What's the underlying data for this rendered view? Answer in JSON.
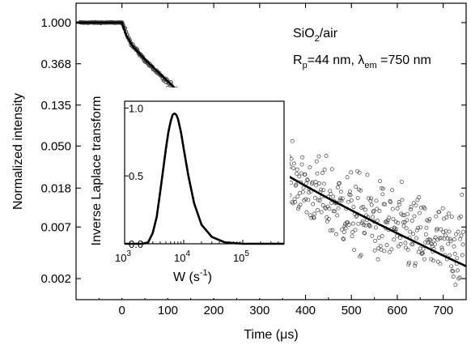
{
  "chart_data": [
    {
      "type": "scatter",
      "title": "",
      "xlabel": "Time (μs)",
      "ylabel": "Normalized intensity",
      "xlim": [
        -100,
        750
      ],
      "ylim": [
        0.0012,
        1.6
      ],
      "y_scale": "log",
      "x_ticks": [
        0,
        100,
        200,
        300,
        400,
        500,
        600,
        700
      ],
      "y_ticks": [
        1.0,
        0.368,
        0.135,
        0.05,
        0.018,
        0.007,
        0.002
      ],
      "y_tick_labels": [
        "1.000",
        "0.368",
        "0.135",
        "0.050",
        "0.018",
        "0.007",
        "0.002"
      ],
      "annotation": {
        "line1_main": "SiO",
        "line1_sub": "2",
        "line1_rest": "/air",
        "line2_r": "R",
        "line2_r_sub": "p",
        "line2_mid": "=44 nm, ",
        "line2_lambda": "λ",
        "line2_lambda_sub": "em",
        "line2_end": " =750 nm"
      },
      "series": [
        {
          "kind": "points",
          "marker": "open-circle",
          "approx_points": [
            [
              -90,
              1.0
            ],
            [
              -60,
              1.0
            ],
            [
              -30,
              1.0
            ],
            [
              0,
              1.0
            ],
            [
              20,
              0.6
            ],
            [
              50,
              0.4
            ],
            [
              100,
              0.23
            ],
            [
              150,
              0.135
            ],
            [
              200,
              0.085
            ],
            [
              250,
              0.055
            ],
            [
              300,
              0.035
            ],
            [
              350,
              0.025
            ],
            [
              400,
              0.018
            ],
            [
              500,
              0.01
            ],
            [
              600,
              0.0065
            ],
            [
              700,
              0.0045
            ]
          ]
        },
        {
          "kind": "fit-line",
          "points": [
            [
              -100,
              1.0
            ],
            [
              0,
              1.0
            ],
            [
              10,
              0.72
            ],
            [
              25,
              0.55
            ],
            [
              50,
              0.41
            ],
            [
              100,
              0.24
            ],
            [
              150,
              0.14
            ],
            [
              200,
              0.085
            ],
            [
              250,
              0.055
            ],
            [
              300,
              0.037
            ],
            [
              350,
              0.026
            ],
            [
              400,
              0.019
            ],
            [
              450,
              0.014
            ],
            [
              500,
              0.0105
            ],
            [
              550,
              0.0079
            ],
            [
              600,
              0.006
            ],
            [
              650,
              0.0046
            ],
            [
              700,
              0.0035
            ],
            [
              750,
              0.0027
            ]
          ]
        }
      ]
    },
    {
      "type": "line",
      "title": "",
      "xlabel_main": "W (s",
      "xlabel_sup": "-1",
      "xlabel_end": ")",
      "ylabel": "Inverse Laplace transform",
      "x_scale": "log",
      "xlim": [
        1000,
        500000
      ],
      "ylim": [
        0,
        1.05
      ],
      "x_ticks": [
        {
          "base": "10",
          "exp": "3",
          "value": 1000
        },
        {
          "base": "10",
          "exp": "4",
          "value": 10000
        },
        {
          "base": "10",
          "exp": "5",
          "value": 100000
        }
      ],
      "y_ticks": [
        0.0,
        0.5,
        1.0
      ],
      "y_tick_labels": [
        "0.0",
        "0.5",
        "1.0"
      ],
      "series": [
        {
          "kind": "distribution",
          "points": [
            [
              1000,
              0.0
            ],
            [
              2000,
              0.0
            ],
            [
              2500,
              0.01
            ],
            [
              3000,
              0.08
            ],
            [
              3500,
              0.2
            ],
            [
              4000,
              0.38
            ],
            [
              4500,
              0.55
            ],
            [
              5000,
              0.7
            ],
            [
              5500,
              0.82
            ],
            [
              6000,
              0.9
            ],
            [
              6500,
              0.95
            ],
            [
              7000,
              0.96
            ],
            [
              7500,
              0.95
            ],
            [
              8000,
              0.92
            ],
            [
              9000,
              0.82
            ],
            [
              10000,
              0.7
            ],
            [
              12000,
              0.5
            ],
            [
              15000,
              0.3
            ],
            [
              20000,
              0.14
            ],
            [
              30000,
              0.05
            ],
            [
              50000,
              0.01
            ],
            [
              100000,
              0.0
            ],
            [
              500000,
              0.0
            ]
          ]
        }
      ]
    }
  ]
}
